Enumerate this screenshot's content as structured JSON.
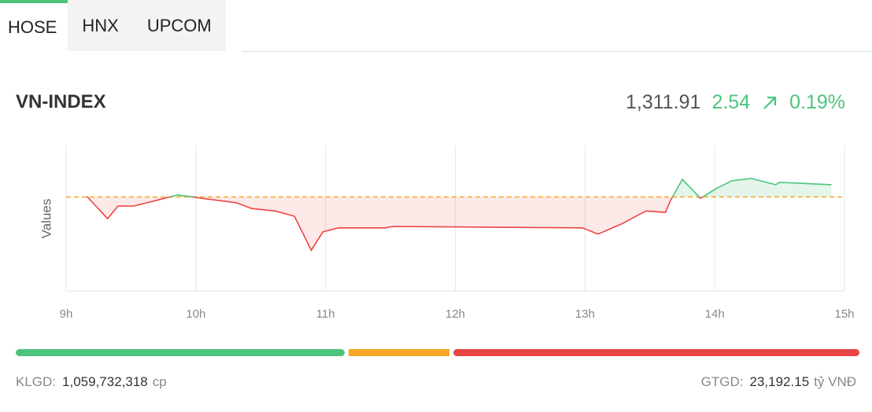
{
  "tabs": [
    "HOSE",
    "HNX",
    "UPCOM"
  ],
  "active_tab": 0,
  "index": {
    "name": "VN-INDEX",
    "value": "1,311.91",
    "change": "2.54",
    "percent": "0.19%"
  },
  "chart_data": {
    "type": "line",
    "y_label": "Values",
    "x": [
      9.16,
      9.32,
      9.4,
      9.52,
      9.7,
      9.86,
      9.95,
      10.07,
      10.31,
      10.43,
      10.61,
      10.76,
      10.89,
      10.98,
      11.1,
      11.46,
      11.52,
      12.98,
      13.1,
      13.28,
      13.47,
      13.62,
      13.66,
      13.75,
      13.82,
      13.89,
      14.01,
      14.13,
      14.28,
      14.47,
      14.5,
      14.9
    ],
    "values": [
      1309.5,
      1304.9,
      1307.5,
      1307.5,
      1308.7,
      1309.8,
      1309.5,
      1309.0,
      1308.2,
      1307.0,
      1306.5,
      1305.4,
      1298.4,
      1302.2,
      1303.0,
      1303.0,
      1303.3,
      1303.0,
      1301.7,
      1303.8,
      1306.5,
      1306.2,
      1308.7,
      1313.0,
      1311.1,
      1309.1,
      1311.1,
      1312.7,
      1313.2,
      1311.9,
      1312.4,
      1311.9
    ],
    "reference": 1309.37,
    "up_color": "#4cc47c",
    "down_color": "#ee4444",
    "reference_color": "#f5a623",
    "xlim": [
      9,
      15
    ],
    "xticks": [
      {
        "value": 9,
        "label": "9h"
      },
      {
        "value": 10,
        "label": "10h"
      },
      {
        "value": 11,
        "label": "11h"
      },
      {
        "value": 12,
        "label": "12h"
      },
      {
        "value": 13,
        "label": "13h"
      },
      {
        "value": 14,
        "label": "14h"
      },
      {
        "value": 15,
        "label": "15h"
      }
    ],
    "ylim": [
      1290,
      1320
    ],
    "grid": true
  },
  "footer": {
    "volume_label": "KLGD:",
    "volume": "1,059,732,318",
    "volume_unit": "cp",
    "value_label": "GTGD:",
    "value": "23,192.15",
    "value_unit": "tỷ VNĐ"
  }
}
